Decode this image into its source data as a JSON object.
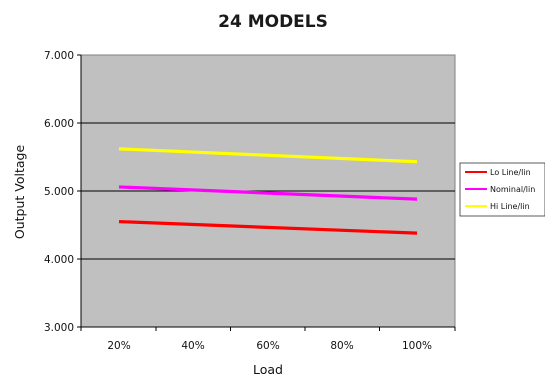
{
  "chart_data": {
    "type": "line",
    "title": "24 MODELS",
    "xlabel": "Load",
    "ylabel": "Output Voltage",
    "categories": [
      "20%",
      "40%",
      "60%",
      "80%",
      "100%"
    ],
    "x": [
      20,
      40,
      60,
      80,
      100
    ],
    "ylim": [
      3.0,
      7.0
    ],
    "yticks": [
      "7.000",
      "6.000",
      "5.000",
      "4.000",
      "3.000"
    ],
    "ytick_values": [
      7.0,
      6.0,
      5.0,
      4.0,
      3.0
    ],
    "grid": "horizontal",
    "legend": "right",
    "plot_background": "#c0c0c0",
    "series": [
      {
        "name": "Lo Line/lin",
        "color": "#ff0000",
        "x": [
          20,
          100
        ],
        "values": [
          4.55,
          4.38
        ]
      },
      {
        "name": "Nominal/lin",
        "color": "#ff00ff",
        "x": [
          20,
          100
        ],
        "values": [
          5.06,
          4.88
        ]
      },
      {
        "name": "Hi Line/lin",
        "color": "#ffff00",
        "x": [
          20,
          100
        ],
        "values": [
          5.62,
          5.43
        ]
      }
    ]
  }
}
